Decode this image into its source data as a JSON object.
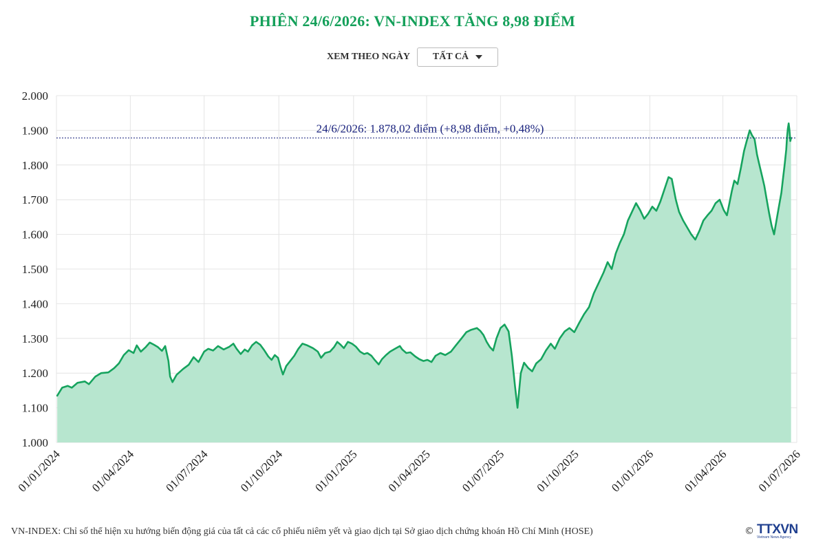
{
  "title": "PHIÊN 24/6/2026: VN-INDEX TĂNG 8,98 ĐIỂM",
  "filter": {
    "label": "XEM THEO NGÀY",
    "selected": "TẤT CẢ"
  },
  "footnote": "VN-INDEX: Chỉ số thể hiện xu hướng biến động giá của tất cả các cổ phiếu niêm yết và giao dịch tại Sở giao dịch chứng khoán Hồ Chí Minh (HOSE)",
  "brand": {
    "copyright": "©",
    "logo": "TTXVN",
    "logo_sub": "Vietnam News Agency"
  },
  "colors": {
    "title": "#14a05a",
    "line": "#16a35e",
    "area": "#b7e6cf",
    "reference": "#1a237e",
    "grid": "#e4e4e4"
  },
  "chart_data": {
    "type": "area",
    "title": "PHIÊN 24/6/2026: VN-INDEX TĂNG 8,98 ĐIỂM",
    "xlabel": "",
    "ylabel": "",
    "ylim": [
      1000,
      2000
    ],
    "xlim": [
      "2024-01-01",
      "2026-07-01"
    ],
    "y_ticks": [
      "1.000",
      "1.100",
      "1.200",
      "1.300",
      "1.400",
      "1.500",
      "1.600",
      "1.700",
      "1.800",
      "1.900",
      "2.000"
    ],
    "x_ticks": [
      "01/01/2024",
      "01/04/2024",
      "01/07/2024",
      "01/10/2024",
      "01/01/2025",
      "01/04/2025",
      "01/07/2025",
      "01/10/2025",
      "01/01/2026",
      "01/04/2026",
      "01/07/2026"
    ],
    "grid": true,
    "legend": "none",
    "reference_line": {
      "value": 1878.02,
      "label": "24/6/2026: 1.878,02 điểm (+8,98 điểm, +0,48%)"
    },
    "series": [
      {
        "points": [
          [
            "2024-01-02",
            1135
          ],
          [
            "2024-01-08",
            1158
          ],
          [
            "2024-01-15",
            1163
          ],
          [
            "2024-01-20",
            1158
          ],
          [
            "2024-01-27",
            1172
          ],
          [
            "2024-02-05",
            1176
          ],
          [
            "2024-02-10",
            1168
          ],
          [
            "2024-02-18",
            1190
          ],
          [
            "2024-02-25",
            1200
          ],
          [
            "2024-03-05",
            1202
          ],
          [
            "2024-03-12",
            1214
          ],
          [
            "2024-03-18",
            1228
          ],
          [
            "2024-03-24",
            1252
          ],
          [
            "2024-03-30",
            1266
          ],
          [
            "2024-04-05",
            1258
          ],
          [
            "2024-04-09",
            1280
          ],
          [
            "2024-04-14",
            1262
          ],
          [
            "2024-04-20",
            1275
          ],
          [
            "2024-04-25",
            1288
          ],
          [
            "2024-04-30",
            1282
          ],
          [
            "2024-05-05",
            1275
          ],
          [
            "2024-05-10",
            1264
          ],
          [
            "2024-05-14",
            1278
          ],
          [
            "2024-05-18",
            1235
          ],
          [
            "2024-05-20",
            1190
          ],
          [
            "2024-05-23",
            1174
          ],
          [
            "2024-05-28",
            1195
          ],
          [
            "2024-06-05",
            1212
          ],
          [
            "2024-06-12",
            1224
          ],
          [
            "2024-06-18",
            1246
          ],
          [
            "2024-06-24",
            1232
          ],
          [
            "2024-07-01",
            1262
          ],
          [
            "2024-07-06",
            1270
          ],
          [
            "2024-07-12",
            1265
          ],
          [
            "2024-07-18",
            1278
          ],
          [
            "2024-07-25",
            1268
          ],
          [
            "2024-08-01",
            1276
          ],
          [
            "2024-08-06",
            1285
          ],
          [
            "2024-08-10",
            1270
          ],
          [
            "2024-08-15",
            1255
          ],
          [
            "2024-08-20",
            1268
          ],
          [
            "2024-08-24",
            1262
          ],
          [
            "2024-08-29",
            1280
          ],
          [
            "2024-09-03",
            1290
          ],
          [
            "2024-09-08",
            1282
          ],
          [
            "2024-09-13",
            1266
          ],
          [
            "2024-09-18",
            1248
          ],
          [
            "2024-09-22",
            1238
          ],
          [
            "2024-09-26",
            1252
          ],
          [
            "2024-09-30",
            1244
          ],
          [
            "2024-10-03",
            1218
          ],
          [
            "2024-10-06",
            1196
          ],
          [
            "2024-10-10",
            1220
          ],
          [
            "2024-10-15",
            1235
          ],
          [
            "2024-10-20",
            1250
          ],
          [
            "2024-10-25",
            1270
          ],
          [
            "2024-10-30",
            1285
          ],
          [
            "2024-11-05",
            1280
          ],
          [
            "2024-11-12",
            1272
          ],
          [
            "2024-11-18",
            1262
          ],
          [
            "2024-11-22",
            1244
          ],
          [
            "2024-11-27",
            1258
          ],
          [
            "2024-12-03",
            1262
          ],
          [
            "2024-12-08",
            1275
          ],
          [
            "2024-12-12",
            1290
          ],
          [
            "2024-12-16",
            1282
          ],
          [
            "2024-12-20",
            1272
          ],
          [
            "2024-12-25",
            1290
          ],
          [
            "2024-12-30",
            1285
          ],
          [
            "2025-01-04",
            1276
          ],
          [
            "2025-01-09",
            1262
          ],
          [
            "2025-01-14",
            1255
          ],
          [
            "2025-01-18",
            1258
          ],
          [
            "2025-01-23",
            1250
          ],
          [
            "2025-01-27",
            1238
          ],
          [
            "2025-02-01",
            1225
          ],
          [
            "2025-02-05",
            1240
          ],
          [
            "2025-02-10",
            1252
          ],
          [
            "2025-02-15",
            1262
          ],
          [
            "2025-02-21",
            1270
          ],
          [
            "2025-02-27",
            1278
          ],
          [
            "2025-03-02",
            1268
          ],
          [
            "2025-03-07",
            1258
          ],
          [
            "2025-03-12",
            1260
          ],
          [
            "2025-03-18",
            1248
          ],
          [
            "2025-03-23",
            1240
          ],
          [
            "2025-03-28",
            1235
          ],
          [
            "2025-04-02",
            1238
          ],
          [
            "2025-04-07",
            1232
          ],
          [
            "2025-04-12",
            1250
          ],
          [
            "2025-04-18",
            1258
          ],
          [
            "2025-04-24",
            1252
          ],
          [
            "2025-05-01",
            1262
          ],
          [
            "2025-05-07",
            1280
          ],
          [
            "2025-05-14",
            1300
          ],
          [
            "2025-05-20",
            1318
          ],
          [
            "2025-05-26",
            1325
          ],
          [
            "2025-06-02",
            1330
          ],
          [
            "2025-06-06",
            1322
          ],
          [
            "2025-06-10",
            1310
          ],
          [
            "2025-06-14",
            1290
          ],
          [
            "2025-06-18",
            1275
          ],
          [
            "2025-06-22",
            1265
          ],
          [
            "2025-06-26",
            1300
          ],
          [
            "2025-07-01",
            1330
          ],
          [
            "2025-07-06",
            1340
          ],
          [
            "2025-07-11",
            1320
          ],
          [
            "2025-07-15",
            1250
          ],
          [
            "2025-07-19",
            1160
          ],
          [
            "2025-07-22",
            1100
          ],
          [
            "2025-07-26",
            1200
          ],
          [
            "2025-07-30",
            1230
          ],
          [
            "2025-08-04",
            1215
          ],
          [
            "2025-08-09",
            1205
          ],
          [
            "2025-08-14",
            1228
          ],
          [
            "2025-08-20",
            1240
          ],
          [
            "2025-08-26",
            1265
          ],
          [
            "2025-09-01",
            1285
          ],
          [
            "2025-09-06",
            1270
          ],
          [
            "2025-09-12",
            1300
          ],
          [
            "2025-09-18",
            1320
          ],
          [
            "2025-09-24",
            1330
          ],
          [
            "2025-09-30",
            1318
          ],
          [
            "2025-10-06",
            1345
          ],
          [
            "2025-10-12",
            1370
          ],
          [
            "2025-10-18",
            1390
          ],
          [
            "2025-10-24",
            1430
          ],
          [
            "2025-10-30",
            1460
          ],
          [
            "2025-11-05",
            1490
          ],
          [
            "2025-11-10",
            1520
          ],
          [
            "2025-11-15",
            1500
          ],
          [
            "2025-11-20",
            1545
          ],
          [
            "2025-11-25",
            1575
          ],
          [
            "2025-11-30",
            1600
          ],
          [
            "2025-12-05",
            1640
          ],
          [
            "2025-12-10",
            1665
          ],
          [
            "2025-12-15",
            1690
          ],
          [
            "2025-12-20",
            1670
          ],
          [
            "2025-12-25",
            1645
          ],
          [
            "2025-12-30",
            1660
          ],
          [
            "2026-01-04",
            1680
          ],
          [
            "2026-01-09",
            1668
          ],
          [
            "2026-01-14",
            1695
          ],
          [
            "2026-01-19",
            1730
          ],
          [
            "2026-01-24",
            1765
          ],
          [
            "2026-01-28",
            1760
          ],
          [
            "2026-02-02",
            1700
          ],
          [
            "2026-02-06",
            1665
          ],
          [
            "2026-02-11",
            1640
          ],
          [
            "2026-02-16",
            1620
          ],
          [
            "2026-02-21",
            1600
          ],
          [
            "2026-02-26",
            1585
          ],
          [
            "2026-03-03",
            1610
          ],
          [
            "2026-03-08",
            1640
          ],
          [
            "2026-03-13",
            1655
          ],
          [
            "2026-03-18",
            1668
          ],
          [
            "2026-03-23",
            1690
          ],
          [
            "2026-03-28",
            1700
          ],
          [
            "2026-04-02",
            1670
          ],
          [
            "2026-04-06",
            1655
          ],
          [
            "2026-04-09",
            1690
          ],
          [
            "2026-04-12",
            1725
          ],
          [
            "2026-04-15",
            1755
          ],
          [
            "2026-04-19",
            1745
          ],
          [
            "2026-04-23",
            1790
          ],
          [
            "2026-04-27",
            1840
          ],
          [
            "2026-05-01",
            1875
          ],
          [
            "2026-05-04",
            1900
          ],
          [
            "2026-05-07",
            1885
          ],
          [
            "2026-05-10",
            1875
          ],
          [
            "2026-05-13",
            1830
          ],
          [
            "2026-05-16",
            1800
          ],
          [
            "2026-05-19",
            1770
          ],
          [
            "2026-05-22",
            1740
          ],
          [
            "2026-05-25",
            1700
          ],
          [
            "2026-05-28",
            1660
          ],
          [
            "2026-05-31",
            1625
          ],
          [
            "2026-06-03",
            1600
          ],
          [
            "2026-06-06",
            1640
          ],
          [
            "2026-06-09",
            1680
          ],
          [
            "2026-06-12",
            1720
          ],
          [
            "2026-06-14",
            1760
          ],
          [
            "2026-06-16",
            1800
          ],
          [
            "2026-06-18",
            1845
          ],
          [
            "2026-06-19",
            1880
          ],
          [
            "2026-06-20",
            1905
          ],
          [
            "2026-06-21",
            1920
          ],
          [
            "2026-06-22",
            1900
          ],
          [
            "2026-06-23",
            1869
          ],
          [
            "2026-06-24",
            1878
          ]
        ]
      }
    ]
  }
}
